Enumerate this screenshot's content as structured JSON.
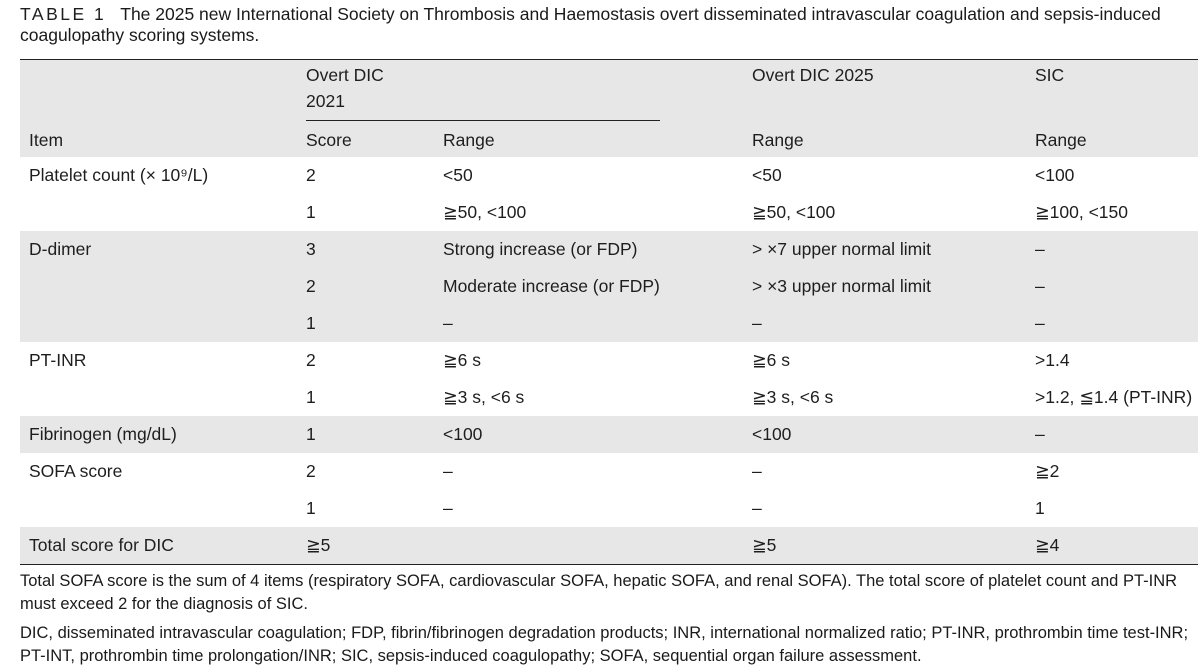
{
  "caption": {
    "label": "TABLE 1",
    "text": "The 2025 new International Society on Thrombosis and Haemostasis overt disseminated intravascular coagulation and sepsis-induced coagulopathy scoring systems."
  },
  "header": {
    "group1": "Overt DIC 2021",
    "group2": "Overt DIC 2025",
    "group3": "SIC",
    "item": "Item",
    "score": "Score",
    "range1": "Range",
    "range2": "Range",
    "range3": "Range"
  },
  "rows": [
    {
      "item": "Platelet count (× 10⁹/L)",
      "score": "2",
      "r1": "<50",
      "r2": "<50",
      "r3": "<100"
    },
    {
      "item": "",
      "score": "1",
      "r1": "≧50, <100",
      "r2": "≧50, <100",
      "r3": "≧100, <150"
    },
    {
      "item": "D-dimer",
      "score": "3",
      "r1": "Strong increase (or FDP)",
      "r2": "> ×7 upper normal limit",
      "r3": "–"
    },
    {
      "item": "",
      "score": "2",
      "r1": "Moderate increase (or FDP)",
      "r2": "> ×3 upper normal limit",
      "r3": "–"
    },
    {
      "item": "",
      "score": "1",
      "r1": "–",
      "r2": "–",
      "r3": "–"
    },
    {
      "item": "PT-INR",
      "score": "2",
      "r1": "≧6 s",
      "r2": "≧6 s",
      "r3": ">1.4"
    },
    {
      "item": "",
      "score": "1",
      "r1": "≧3 s, <6 s",
      "r2": "≧3 s, <6 s",
      "r3": ">1.2, ≦1.4 (PT-INR)"
    },
    {
      "item": "Fibrinogen (mg/dL)",
      "score": "1",
      "r1": "<100",
      "r2": "<100",
      "r3": "–"
    },
    {
      "item": "SOFA score",
      "score": "2",
      "r1": "–",
      "r2": "–",
      "r3": "≧2"
    },
    {
      "item": "",
      "score": "1",
      "r1": "–",
      "r2": "–",
      "r3": "1"
    },
    {
      "item": "Total score for DIC",
      "score": "≧5",
      "r1": "",
      "r2": "≧5",
      "r3": "≧4"
    }
  ],
  "footnotes": {
    "note1": "Total SOFA score is the sum of 4 items (respiratory SOFA, cardiovascular SOFA, hepatic SOFA, and renal SOFA). The total score of platelet count and PT-INR must exceed 2 for the diagnosis of SIC.",
    "note2": "DIC, disseminated intravascular coagulation; FDP, fibrin/fibrinogen degradation products; INR, international normalized ratio; PT-INR, prothrombin time test-INR; PT-INT, prothrombin time prolongation/INR; SIC, sepsis-induced coagulopathy; SOFA, sequential organ failure assessment."
  }
}
